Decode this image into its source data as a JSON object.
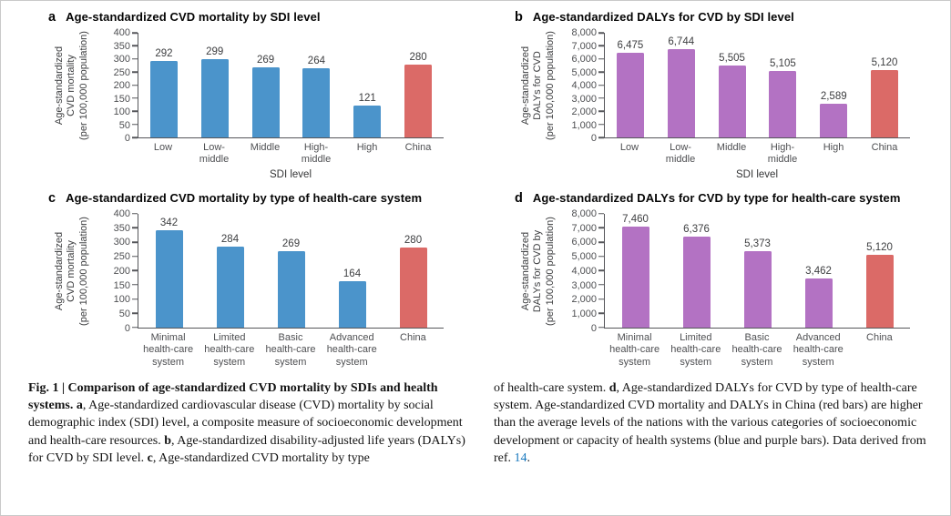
{
  "colors": {
    "blue_bar": "#4b94cb",
    "purple_bar": "#b372c3",
    "red_bar": "#db6a67",
    "axis": "#55565a",
    "link_blue": "#1878be"
  },
  "chart_data": [
    {
      "type": "bar",
      "panel": "a",
      "title": "Age-standardized CVD mortality by SDI level",
      "ylabel_lines": [
        "Age-standardized",
        "CVD mortality",
        "(per 100,000 population)"
      ],
      "xlabel": "SDI level",
      "ylim": [
        0,
        400
      ],
      "yticks": [
        "400",
        "350",
        "300",
        "250",
        "200",
        "150",
        "100",
        "50",
        "0"
      ],
      "grid": false,
      "legend": "none",
      "categories": [
        [
          "Low"
        ],
        [
          "Low-",
          "middle"
        ],
        [
          "Middle"
        ],
        [
          "High-",
          "middle"
        ],
        [
          "High"
        ],
        [
          "China"
        ]
      ],
      "values": [
        292,
        299,
        269,
        264,
        121,
        280
      ],
      "value_labels": [
        "292",
        "299",
        "269",
        "264",
        "121",
        "280"
      ],
      "bar_colors": [
        "#4b94cb",
        "#4b94cb",
        "#4b94cb",
        "#4b94cb",
        "#4b94cb",
        "#db6a67"
      ]
    },
    {
      "type": "bar",
      "panel": "b",
      "title": "Age-standardized DALYs for CVD by SDI level",
      "ylabel_lines": [
        "Age-standardized",
        "DALYs for CVD",
        "(per 100,000 population)"
      ],
      "xlabel": "SDI level",
      "ylim": [
        0,
        8000
      ],
      "yticks": [
        "8,000",
        "7,000",
        "6,000",
        "5,000",
        "4,000",
        "3,000",
        "2,000",
        "1,000",
        "0"
      ],
      "grid": false,
      "legend": "none",
      "categories": [
        [
          "Low"
        ],
        [
          "Low-",
          "middle"
        ],
        [
          "Middle"
        ],
        [
          "High-",
          "middle"
        ],
        [
          "High"
        ],
        [
          "China"
        ]
      ],
      "values": [
        6475,
        6744,
        5505,
        5105,
        2589,
        5120
      ],
      "value_labels": [
        "6,475",
        "6,744",
        "5,505",
        "5,105",
        "2,589",
        "5,120"
      ],
      "bar_colors": [
        "#b372c3",
        "#b372c3",
        "#b372c3",
        "#b372c3",
        "#b372c3",
        "#db6a67"
      ]
    },
    {
      "type": "bar",
      "panel": "c",
      "title": "Age-standardized CVD mortality by type of health-care system",
      "ylabel_lines": [
        "Age-standardized",
        "CVD mortality",
        "(per 100,000 population)"
      ],
      "ylim": [
        0,
        400
      ],
      "yticks": [
        "400",
        "350",
        "300",
        "250",
        "200",
        "150",
        "100",
        "50",
        "0"
      ],
      "grid": false,
      "legend": "none",
      "categories": [
        [
          "Minimal",
          "health-care",
          "system"
        ],
        [
          "Limited",
          "health-care",
          "system"
        ],
        [
          "Basic",
          "health-care",
          "system"
        ],
        [
          "Advanced",
          "health-care",
          "system"
        ],
        [
          "China"
        ]
      ],
      "values": [
        342,
        284,
        269,
        164,
        280
      ],
      "value_labels": [
        "342",
        "284",
        "269",
        "164",
        "280"
      ],
      "bar_colors": [
        "#4b94cb",
        "#4b94cb",
        "#4b94cb",
        "#4b94cb",
        "#db6a67"
      ]
    },
    {
      "type": "bar",
      "panel": "d",
      "title": "Age-standardized DALYs for CVD by type for health-care system",
      "ylabel_lines": [
        "Age-standardized",
        "DALYs for CVD by",
        "(per 100,000 population)"
      ],
      "ylim": [
        0,
        8000
      ],
      "yticks": [
        "8,000",
        "7,000",
        "6,000",
        "5,000",
        "4,000",
        "3,000",
        "2,000",
        "1,000",
        "0"
      ],
      "grid": false,
      "legend": "none",
      "categories": [
        [
          "Minimal",
          "health-care",
          "system"
        ],
        [
          "Limited",
          "health-care",
          "system"
        ],
        [
          "Basic",
          "health-care",
          "system"
        ],
        [
          "Advanced",
          "health-care",
          "system"
        ],
        [
          "China"
        ]
      ],
      "values": [
        7460,
        6376,
        5373,
        3462,
        5120
      ],
      "value_labels": [
        "7,460",
        "6,376",
        "5,373",
        "3,462",
        "5,120"
      ],
      "bar_colors": [
        "#b372c3",
        "#b372c3",
        "#b372c3",
        "#b372c3",
        "#db6a67"
      ]
    }
  ],
  "figure_caption": {
    "left": {
      "segments": {
        "0": {
          "text": "Fig. 1 | Comparison of age-standardized CVD mortality by SDIs and health systems. "
        },
        "1": {
          "text": "a"
        },
        "2": {
          "text": ", Age-standardized cardiovascular disease (CVD) mortality by social demographic index (SDI) level, a composite measure of socioeconomic development and health-care resources. "
        },
        "3": {
          "text": "b"
        },
        "4": {
          "text": ", Age-standardized disability-adjusted life years (DALYs) for CVD by SDI level. "
        },
        "5": {
          "text": "c"
        },
        "6": {
          "text": ", Age-standardized CVD mortality by type"
        }
      }
    },
    "right": {
      "segments": {
        "0": {
          "text": "of health-care system. "
        },
        "1": {
          "text": "d"
        },
        "2": {
          "text": ", Age-standardized DALYs for CVD by type of health-care system. Age-standardized CVD mortality and DALYs in China (red bars) are higher than the average levels of the nations with the various categories of socioeconomic development or capacity of health systems (blue and purple bars). Data derived from ref. "
        },
        "3": {
          "text": "14"
        },
        "4": {
          "text": "."
        }
      }
    }
  }
}
